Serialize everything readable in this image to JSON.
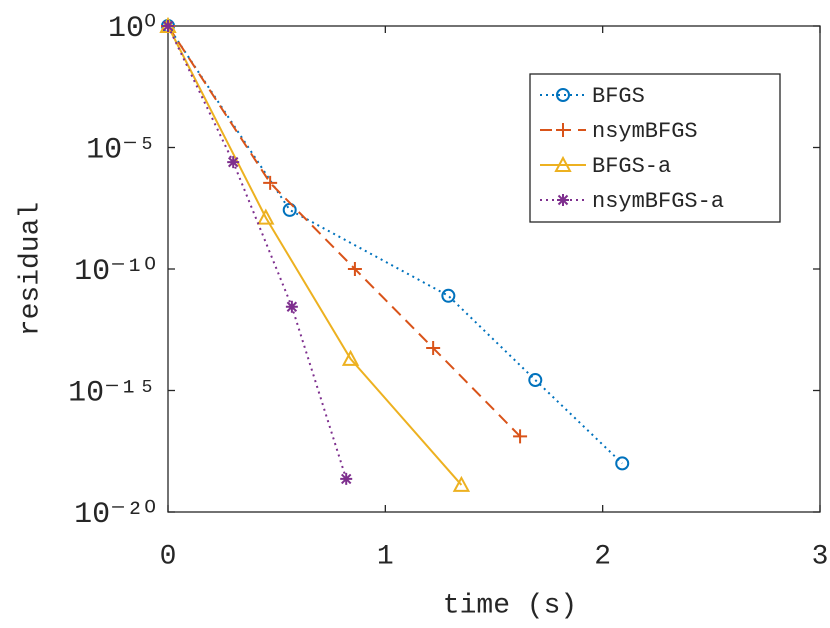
{
  "chart_data": {
    "type": "line",
    "xlabel": "time (s)",
    "ylabel": "residual",
    "xlim": [
      0,
      3
    ],
    "xticks": [
      0,
      1,
      2,
      3
    ],
    "ylim": [
      1e-20,
      1
    ],
    "ylog": true,
    "yticks": [
      {
        "value": 1e-20,
        "label": "10⁻²⁰"
      },
      {
        "value": 1e-15,
        "label": "10⁻¹⁵"
      },
      {
        "value": 1e-10,
        "label": "10⁻¹⁰"
      },
      {
        "value": 1e-05,
        "label": "10⁻⁵"
      },
      {
        "value": 1,
        "label": "10⁰"
      }
    ],
    "legend": "northeast",
    "series": [
      {
        "name": "BFGS",
        "color": "#0072bd",
        "linestyle": "dotted",
        "marker": "circle",
        "x": [
          0,
          0.56,
          1.29,
          1.69,
          2.09
        ],
        "values": [
          1,
          2.7e-08,
          7.9e-12,
          2.7e-15,
          1e-18
        ]
      },
      {
        "name": "nsymBFGS",
        "color": "#d95319",
        "linestyle": "dashed",
        "marker": "plus",
        "x": [
          0,
          0.47,
          0.86,
          1.22,
          1.62
        ],
        "values": [
          1,
          3.5e-07,
          1e-10,
          5.6e-14,
          1.3e-17
        ]
      },
      {
        "name": "BFGS-a",
        "color": "#edb120",
        "linestyle": "solid",
        "marker": "triangle",
        "x": [
          0,
          0.45,
          0.84,
          1.35
        ],
        "values": [
          1,
          1.3e-08,
          2e-14,
          1.3e-19
        ]
      },
      {
        "name": "nsymBFGS-a",
        "color": "#7e2f8e",
        "linestyle": "dotted",
        "marker": "star",
        "x": [
          0,
          0.3,
          0.57,
          0.82
        ],
        "values": [
          1,
          2.5e-06,
          2.8e-12,
          2.3e-19
        ]
      }
    ]
  }
}
